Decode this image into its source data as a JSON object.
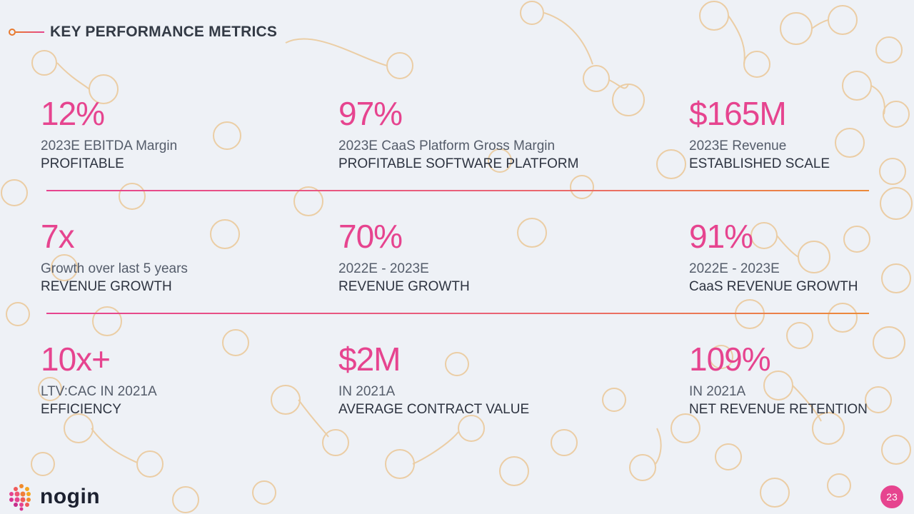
{
  "header": {
    "title": "KEY PERFORMANCE METRICS"
  },
  "metrics": [
    {
      "value": "12%",
      "sub": "2023E EBITDA Margin",
      "label": "PROFITABLE"
    },
    {
      "value": "97%",
      "sub": "2023E CaaS Platform Gross Margin",
      "label": "PROFITABLE SOFTWARE PLATFORM"
    },
    {
      "value": "$165M",
      "sub": "2023E Revenue",
      "label": "ESTABLISHED SCALE"
    },
    {
      "value": "7x",
      "sub": "Growth over last 5 years",
      "label": "REVENUE GROWTH"
    },
    {
      "value": "70%",
      "sub": "2022E - 2023E",
      "label": "REVENUE GROWTH"
    },
    {
      "value": "91%",
      "sub": "2022E - 2023E",
      "label": "CaaS REVENUE GROWTH"
    },
    {
      "value": "10x+",
      "sub": "LTV:CAC IN 2021A",
      "label": "EFFICIENCY"
    },
    {
      "value": "$2M",
      "sub": "IN 2021A",
      "label": "AVERAGE CONTRACT VALUE"
    },
    {
      "value": "109%",
      "sub": "IN 2021A",
      "label": "NET REVENUE RETENTION"
    }
  ],
  "footer": {
    "logo_text": "nogin",
    "page_number": "23"
  },
  "colors": {
    "accent_pink": "#e6448f",
    "accent_orange": "#e8792e",
    "background": "#eef1f6"
  },
  "icons": {
    "logo": "nogin-dots-logo-icon",
    "header": "ring-line-icon"
  }
}
